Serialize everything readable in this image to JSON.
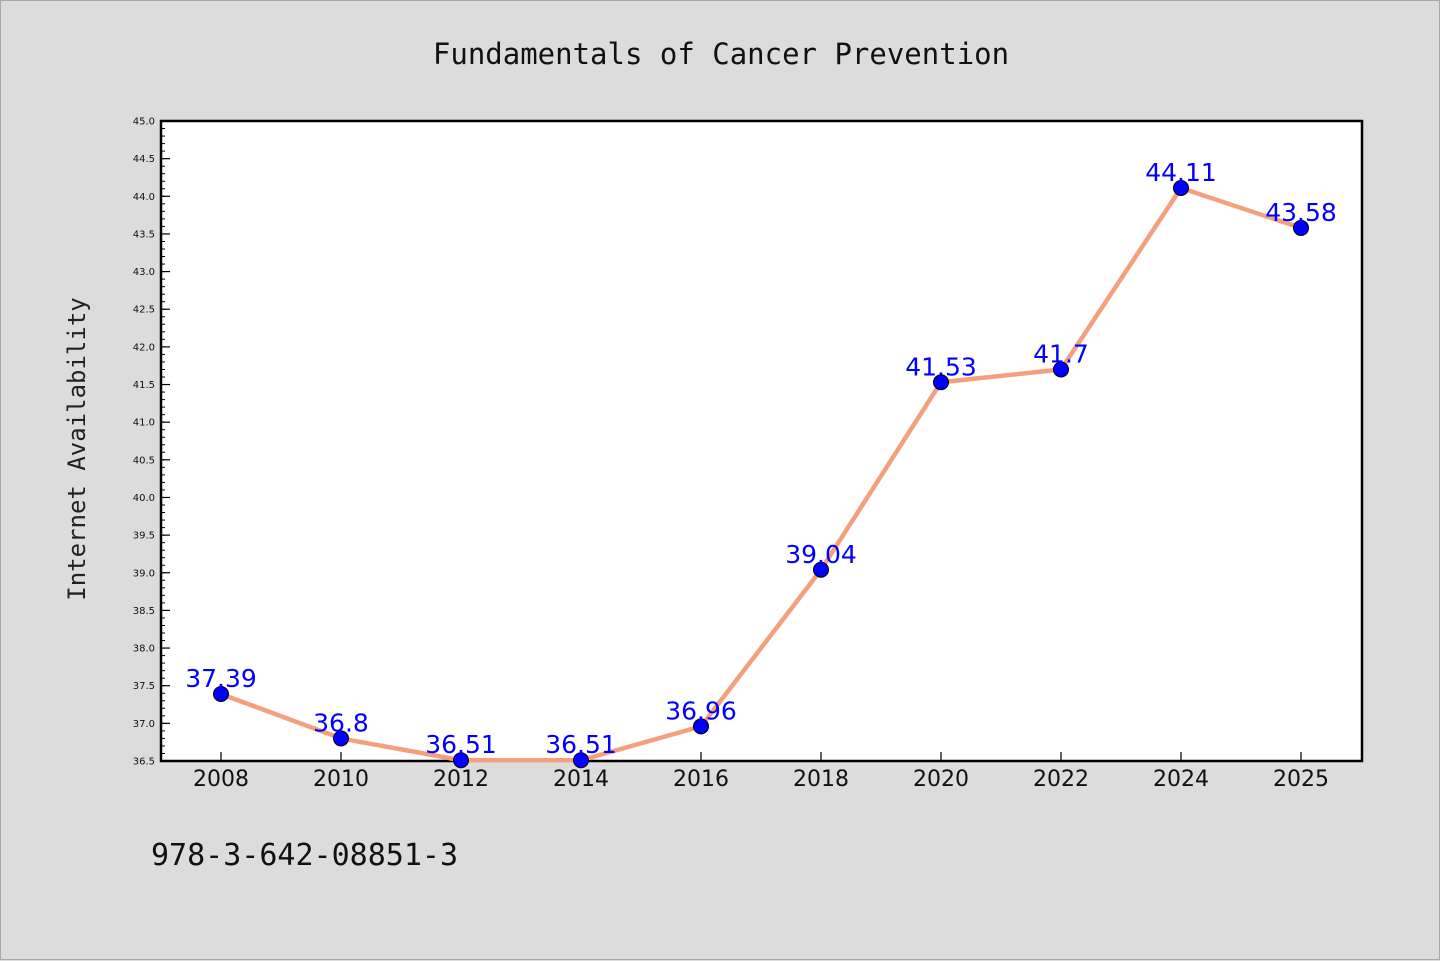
{
  "chart_data": {
    "type": "line",
    "title": "Fundamentals of Cancer Prevention",
    "xlabel": "",
    "ylabel": "Internet Availability",
    "categories": [
      "2008",
      "2010",
      "2012",
      "2014",
      "2016",
      "2018",
      "2020",
      "2022",
      "2024",
      "2025"
    ],
    "values": [
      37.39,
      36.8,
      36.51,
      36.51,
      36.96,
      39.04,
      41.53,
      41.7,
      44.11,
      43.58
    ],
    "data_labels": [
      "37.39",
      "36.8",
      "36.51",
      "36.51",
      "36.96",
      "39.04",
      "41.53",
      "41.7",
      "44.11",
      "43.58"
    ],
    "ylim": [
      36.5,
      45.0
    ],
    "yticks": [
      36.5,
      37.0,
      37.5,
      38.0,
      38.5,
      39.0,
      39.5,
      40.0,
      40.5,
      41.0,
      41.5,
      42.0,
      42.5,
      43.0,
      43.5,
      44.0,
      44.5,
      45.0
    ],
    "ytick_labels": [
      "36.5",
      "37.0",
      "37.5",
      "38.0",
      "38.5",
      "39.0",
      "39.5",
      "40.0",
      "40.5",
      "41.0",
      "41.5",
      "42.0",
      "42.5",
      "43.0",
      "43.5",
      "44.0",
      "44.5",
      "45.0"
    ],
    "grid": false,
    "legend": "none",
    "colors": {
      "line": "#f4a07e",
      "marker": "#0000ff",
      "marker_edge": "#000000",
      "data_label": "#0000ff",
      "background": "#dcdcdc",
      "plot_background": "#ffffff"
    }
  },
  "footer": {
    "code": "978-3-642-08851-3"
  }
}
